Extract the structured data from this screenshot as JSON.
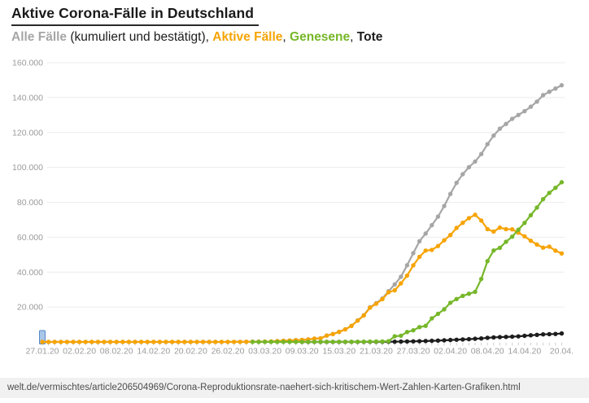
{
  "header": {
    "title": "Aktive Corona-Fälle in Deutschland",
    "legend": {
      "alle": "Alle Fälle",
      "note": " (kumuliert und bestätigt), ",
      "aktive": "Aktive Fälle",
      "sep1": ", ",
      "genesene": "Genesene",
      "sep2": ", ",
      "tote": "Tote"
    }
  },
  "footer": {
    "url": "welt.de/vermischtes/article206504969/Corona-Reproduktionsrate-naehert-sich-kritischem-Wert-Zahlen-Karten-Grafiken.html"
  },
  "colors": {
    "alle": "#a6a6a6",
    "aktive": "#f6a405",
    "genesene": "#76b72a",
    "tote": "#1d1d1d",
    "grid": "#ececec",
    "axis_text": "#9b9b9b",
    "cursor_fill": "#a9c7e8",
    "cursor_stroke": "#5588c7",
    "url_bar_bg": "#f1f1f1"
  },
  "chart_data": {
    "type": "line",
    "title": "Aktive Corona-Fälle in Deutschland",
    "subtitle": "Alle Fälle (kumuliert und bestätigt), Aktive Fälle, Genesene, Tote",
    "xlabel": "",
    "ylabel": "",
    "ylim": [
      0,
      160000
    ],
    "grid": "horizontal",
    "legend_position": "subtitle-inline",
    "cursor": {
      "at_date": "27.01.20",
      "fill": "#a9c7e8",
      "stroke": "#5588c7"
    },
    "dates": [
      "27.01.20",
      "28.01.20",
      "29.01.20",
      "30.01.20",
      "31.01.20",
      "01.02.20",
      "02.02.20",
      "03.02.20",
      "04.02.20",
      "05.02.20",
      "06.02.20",
      "07.02.20",
      "08.02.20",
      "09.02.20",
      "10.02.20",
      "11.02.20",
      "12.02.20",
      "13.02.20",
      "14.02.20",
      "15.02.20",
      "16.02.20",
      "17.02.20",
      "18.02.20",
      "19.02.20",
      "20.02.20",
      "21.02.20",
      "22.02.20",
      "23.02.20",
      "24.02.20",
      "25.02.20",
      "26.02.20",
      "27.02.20",
      "28.02.20",
      "29.02.20",
      "01.03.20",
      "02.03.20",
      "03.03.20",
      "04.03.20",
      "05.03.20",
      "06.03.20",
      "07.03.20",
      "08.03.20",
      "09.03.20",
      "10.03.20",
      "11.03.20",
      "12.03.20",
      "13.03.20",
      "14.03.20",
      "15.03.20",
      "16.03.20",
      "17.03.20",
      "18.03.20",
      "19.03.20",
      "20.03.20",
      "21.03.20",
      "22.03.20",
      "23.03.20",
      "24.03.20",
      "25.03.20",
      "26.03.20",
      "27.03.20",
      "28.03.20",
      "29.03.20",
      "30.03.20",
      "31.03.20",
      "01.04.20",
      "02.04.20",
      "03.04.20",
      "04.04.20",
      "05.04.20",
      "06.04.20",
      "07.04.20",
      "08.04.20",
      "09.04.20",
      "10.04.20",
      "11.04.20",
      "12.04.20",
      "13.04.20",
      "14.04.20",
      "15.04.20",
      "16.04.20",
      "17.04.20",
      "18.04.20",
      "19.04.20",
      "20.04.20"
    ],
    "y_axis": {
      "ticks": [
        {
          "value": 20000,
          "label": "20.000"
        },
        {
          "value": 40000,
          "label": "40.000"
        },
        {
          "value": 60000,
          "label": "60.000"
        },
        {
          "value": 80000,
          "label": "80.000"
        },
        {
          "value": 100000,
          "label": "100.000"
        },
        {
          "value": 120000,
          "label": "120.000"
        },
        {
          "value": 140000,
          "label": "140.000"
        },
        {
          "value": 160000,
          "label": "160.000"
        }
      ]
    },
    "x_axis": {
      "ticks": [
        {
          "index": 0,
          "label": "27.01.20"
        },
        {
          "index": 6,
          "label": "02.02.20"
        },
        {
          "index": 12,
          "label": "08.02.20"
        },
        {
          "index": 18,
          "label": "14.02.20"
        },
        {
          "index": 24,
          "label": "20.02.20"
        },
        {
          "index": 30,
          "label": "26.02.20"
        },
        {
          "index": 36,
          "label": "03.03.20"
        },
        {
          "index": 42,
          "label": "09.03.20"
        },
        {
          "index": 48,
          "label": "15.03.20"
        },
        {
          "index": 54,
          "label": "21.03.20"
        },
        {
          "index": 60,
          "label": "27.03.20"
        },
        {
          "index": 66,
          "label": "02.04.20"
        },
        {
          "index": 72,
          "label": "08.04.20"
        },
        {
          "index": 78,
          "label": "14.04.20"
        },
        {
          "index": 84,
          "label": "20.04."
        }
      ]
    },
    "series": [
      {
        "id": "alle-faelle",
        "name": "Alle Fälle",
        "color": "#a6a6a6",
        "start_index": 0,
        "values": [
          4,
          4,
          4,
          5,
          7,
          8,
          10,
          12,
          12,
          12,
          13,
          13,
          14,
          14,
          14,
          16,
          16,
          16,
          16,
          16,
          16,
          16,
          16,
          16,
          16,
          16,
          16,
          16,
          16,
          17,
          27,
          46,
          48,
          79,
          130,
          159,
          196,
          262,
          482,
          670,
          799,
          1040,
          1176,
          1457,
          1908,
          2078,
          3675,
          4585,
          5795,
          7272,
          9257,
          12327,
          15320,
          19848,
          22213,
          24873,
          29056,
          32986,
          37323,
          43938,
          50871,
          57695,
          62095,
          66885,
          71808,
          77872,
          84794,
          91159,
          96092,
          100123,
          103374,
          107663,
          113296,
          118235,
          122171,
          124908,
          127854,
          130072,
          132210,
          134753,
          137698,
          141397,
          143342,
          145184,
          147065
        ]
      },
      {
        "id": "tote",
        "name": "Tote",
        "color": "#1d1d1d",
        "start_index": 42,
        "values": [
          2,
          2,
          3,
          3,
          7,
          9,
          11,
          17,
          24,
          28,
          44,
          67,
          84,
          94,
          123,
          157,
          206,
          267,
          342,
          433,
          533,
          645,
          775,
          931,
          1107,
          1275,
          1444,
          1584,
          1810,
          2016,
          2349,
          2607,
          2767,
          2871,
          3022,
          3194,
          3495,
          3804,
          4052,
          4352,
          4459,
          4586,
          4862
        ]
      },
      {
        "id": "aktive-faelle",
        "name": "Aktive Fälle",
        "color": "#f6a405",
        "start_index": 0,
        "values": [
          4,
          4,
          4,
          5,
          7,
          8,
          10,
          12,
          12,
          12,
          13,
          13,
          14,
          14,
          14,
          16,
          16,
          16,
          16,
          16,
          16,
          16,
          16,
          16,
          16,
          16,
          16,
          16,
          16,
          17,
          27,
          46,
          48,
          79,
          114,
          143,
          180,
          246,
          466,
          653,
          781,
          1022,
          1156,
          1437,
          1880,
          2050,
          3622,
          4530,
          5738,
          7188,
          9166,
          12194,
          15163,
          19601,
          21896,
          24513,
          28480,
          29586,
          33570,
          37998,
          43871,
          48781,
          52351,
          52740,
          54933,
          58241,
          61247,
          65309,
          68248,
          70939,
          72864,
          69566,
          64647,
          63221,
          65491,
          64637,
          64532,
          62578,
          60515,
          58000,
          55800,
          54000,
          54600,
          52300,
          50700
        ]
      },
      {
        "id": "genesene",
        "name": "Genesene",
        "color": "#76b72a",
        "start_index": 34,
        "values": [
          16,
          16,
          16,
          16,
          16,
          17,
          18,
          18,
          18,
          18,
          25,
          25,
          46,
          46,
          46,
          67,
          67,
          105,
          113,
          180,
          233,
          266,
          453,
          3243,
          3547,
          5673,
          6658,
          8481,
          9211,
          13500,
          16100,
          18700,
          22440,
          24575,
          26400,
          27600,
          28700,
          36081,
          46300,
          52407,
          53913,
          57400,
          60300,
          64300,
          68200,
          72600,
          77000,
          81800,
          85400,
          88300,
          91500
        ]
      }
    ]
  }
}
